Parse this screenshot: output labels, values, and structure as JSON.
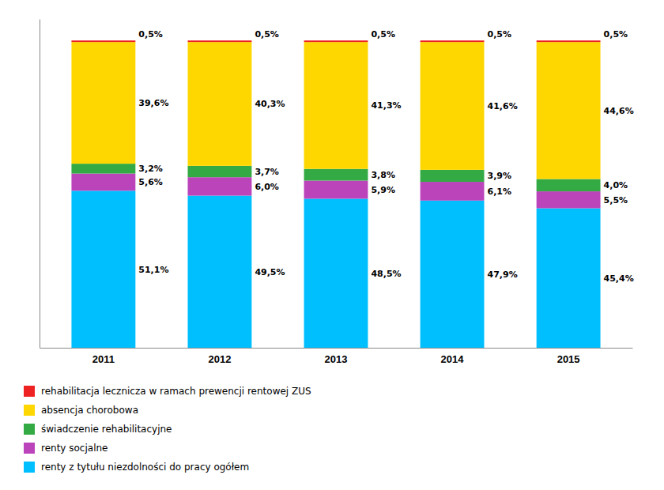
{
  "chart_data": {
    "type": "bar",
    "stacked": true,
    "categories": [
      "2011",
      "2012",
      "2013",
      "2014",
      "2015"
    ],
    "series": [
      {
        "name": "renty z tytułu niezdolności do pracy ogółem",
        "color": "#00BFFF",
        "values": [
          51.1,
          49.5,
          48.5,
          47.9,
          45.4
        ],
        "value_labels": [
          "51,1%",
          "49,5%",
          "48,5%",
          "47,9%",
          "45,4%"
        ]
      },
      {
        "name": "renty socjalne",
        "color": "#BB44BB",
        "values": [
          5.6,
          6.0,
          5.9,
          6.1,
          5.5
        ],
        "value_labels": [
          "5,6%",
          "6,0%",
          "5,9%",
          "6,1%",
          "5,5%"
        ]
      },
      {
        "name": "świadczenie rehabilitacyjne",
        "color": "#33AA44",
        "values": [
          3.2,
          3.7,
          3.8,
          3.9,
          4.0
        ],
        "value_labels": [
          "3,2%",
          "3,7%",
          "3,8%",
          "3,9%",
          "4,0%"
        ]
      },
      {
        "name": "absencja chorobowa",
        "color": "#FFD700",
        "values": [
          39.6,
          40.3,
          41.3,
          41.6,
          44.6
        ],
        "value_labels": [
          "39,6%",
          "40,3%",
          "41,3%",
          "41,6%",
          "44,6%"
        ]
      },
      {
        "name": "rehabilitacja lecznicza w ramach prewencji rentowej ZUS",
        "color": "#EE2222",
        "values": [
          0.5,
          0.5,
          0.5,
          0.5,
          0.5
        ],
        "value_labels": [
          "0,5%",
          "0,5%",
          "0,5%",
          "0,5%",
          "0,5%"
        ]
      }
    ],
    "ylim": [
      0,
      107
    ],
    "yticks": [],
    "grid": false,
    "legend": "bottom",
    "data_labels": true,
    "tick_labels": "x"
  }
}
